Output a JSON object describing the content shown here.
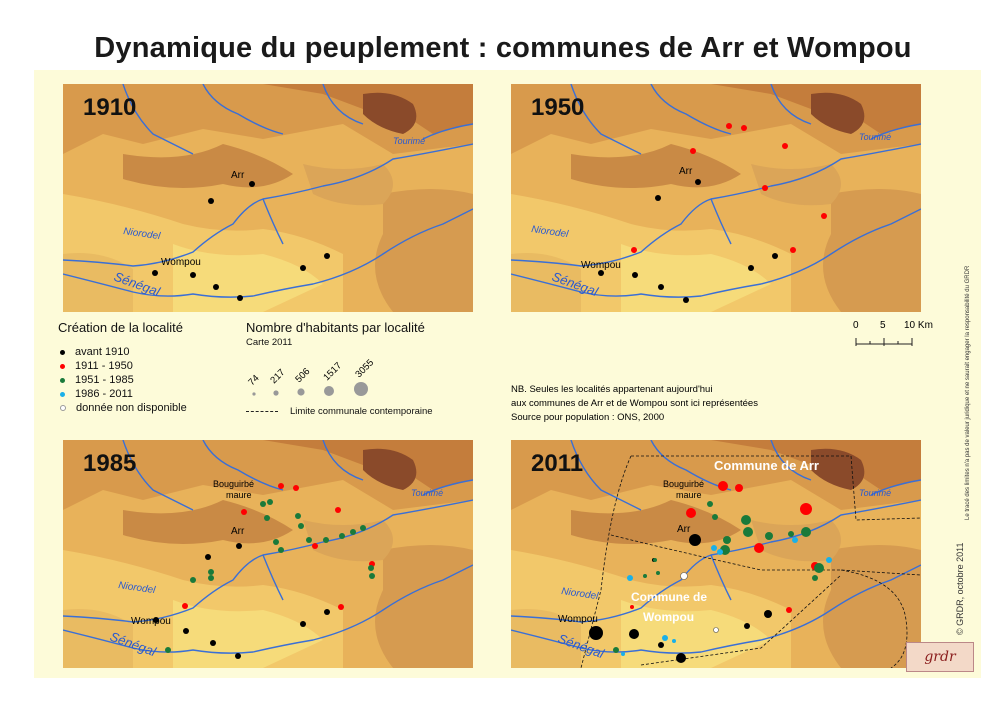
{
  "title": "Dynamique du peuplement : communes de Arr et Wompou",
  "panels": {
    "p1910": "1910",
    "p1950": "1950",
    "p1985": "1985",
    "p2011": "2011"
  },
  "place_labels": {
    "arr": "Arr",
    "wompou": "Wompou",
    "bouguirbe": "Bouguirbé",
    "maure": "maure",
    "commune_arr": "Commune de Arr",
    "commune_wompou_1": "Commune de",
    "commune_wompou_2": "Wompou",
    "tourime": "Tourimé",
    "niorodel": "Niorodel",
    "senegal": "Sénégal"
  },
  "legend": {
    "creation_title": "Création de la localité",
    "creation_items": [
      {
        "label": "avant 1910",
        "color": "#000000"
      },
      {
        "label": "1911 - 1950",
        "color": "#ff0000"
      },
      {
        "label": "1951 - 1985",
        "color": "#1a7a3a"
      },
      {
        "label": "1986 - 2011",
        "color": "#1ab0e8"
      },
      {
        "label": "donnée non disponible",
        "color": "#ffffff"
      }
    ],
    "pop_title": "Nombre d'habitants par localité",
    "pop_subtitle": "Carte 2011",
    "pop_values": [
      "74",
      "217",
      "506",
      "1517",
      "3055"
    ],
    "boundary_label": "Limite communale contemporaine"
  },
  "scale": {
    "ticks": [
      "0",
      "5",
      "10 Km"
    ]
  },
  "notes": {
    "line1": "NB. Seules les localités appartenant aujourd'hui",
    "line2": "aux communes de Arr et de Wompou sont ici représentées",
    "line3": "Source pour population : ONS, 2000"
  },
  "credits": {
    "disclaimer": "Le tracé des limites n'a pas de valeur juridique et ne saurait engager la responsabilité du GRDR",
    "author": "© GRDR, octobre 2011",
    "logo_text": "grdr"
  },
  "colors": {
    "background": "#fdfbd9",
    "river": "#3a6fd6",
    "before_1910": "#000000",
    "y1911_1950": "#ff0000",
    "y1951_1985": "#1a7a3a",
    "y1986_2011": "#1ab0e8"
  }
}
